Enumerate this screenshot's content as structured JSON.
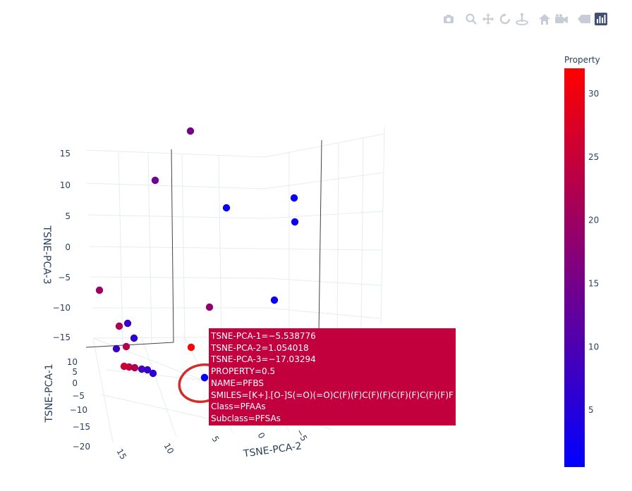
{
  "modebar": {
    "icons": [
      "camera-icon",
      "zoom-icon",
      "pan-icon",
      "orbit-icon",
      "turntable-icon",
      "home-icon",
      "reset-camera-icon",
      "toggle-hover-icon",
      "plotly-logo-icon"
    ]
  },
  "chart_data": {
    "type": "scatter3d",
    "axes": {
      "x": {
        "title": "TSNE-PCA-1",
        "ticks": [
          "−20",
          "−15",
          "−10",
          "−5",
          "0",
          "5",
          "10"
        ]
      },
      "y": {
        "title": "TSNE-PCA-2",
        "ticks": [
          "15",
          "10",
          "5",
          "0",
          "−5"
        ]
      },
      "z": {
        "title": "TSNE-PCA-3",
        "ticks": [
          "−15",
          "−10",
          "−5",
          "0",
          "5",
          "10",
          "15"
        ]
      }
    },
    "colorbar": {
      "title": "Property",
      "ticks": [
        "5",
        "10",
        "15",
        "20",
        "25",
        "30"
      ],
      "range": [
        0.5,
        32
      ],
      "low_color": "#0000ff",
      "high_color": "#ff0000"
    },
    "points": [
      {
        "property": 15
      },
      {
        "property": 14
      },
      {
        "property": 2
      },
      {
        "property": 2
      },
      {
        "property": 2
      },
      {
        "property": 18
      },
      {
        "property": 20
      },
      {
        "property": 2
      },
      {
        "property": 22
      },
      {
        "property": 8
      },
      {
        "property": 6
      },
      {
        "property": 23
      },
      {
        "property": 8
      },
      {
        "property": 6
      },
      {
        "property": 26
      },
      {
        "property": 24
      },
      {
        "property": 22
      },
      {
        "property": 9
      },
      {
        "property": 7
      },
      {
        "property": 4
      },
      {
        "property": 32
      },
      {
        "property": 0.5
      }
    ],
    "hover": {
      "lines": [
        "TSNE-PCA-1=−5.538776",
        "TSNE-PCA-2=1.054018",
        "TSNE-PCA-3=−17.03294",
        "PROPERTY=0.5",
        "NAME=PFBS",
        "SMILES=[K+].[O-]S(=O)(=O)C(F)(F)C(F)(F)C(F)(F)C(F)(F)F",
        "Class=PFAAs",
        "Subclass=PFSAs"
      ],
      "color": "#c2003d"
    },
    "annotation_circle_color": "#d42a2a"
  }
}
